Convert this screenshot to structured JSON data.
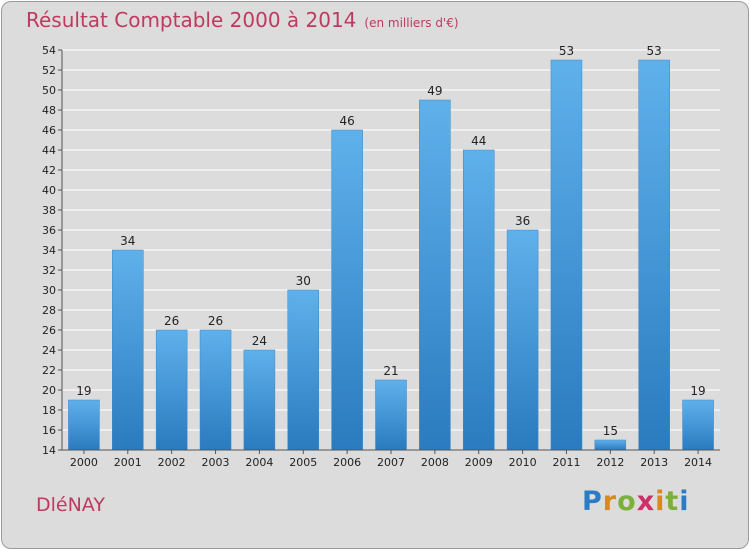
{
  "title": "Résultat Comptable 2000 à 2014",
  "unit": "(en milliers d'€)",
  "commune": "DléNAY",
  "logo": {
    "text": "Proxiti",
    "letter_colors": [
      "#2a7cc4",
      "#d98a1a",
      "#7bb13a",
      "#cc2f6b",
      "#d98a1a",
      "#7bb13a",
      "#2a7cc4"
    ]
  },
  "colors": {
    "title": "#c0395f",
    "bar_top": "#5fb1eb",
    "bar_bottom": "#2a7bbf",
    "grid": "#ffffff"
  },
  "chart_data": {
    "type": "bar",
    "title": "Résultat Comptable 2000 à 2014",
    "ylabel": "(en milliers d'€)",
    "categories": [
      "2000",
      "2001",
      "2002",
      "2003",
      "2004",
      "2005",
      "2006",
      "2007",
      "2008",
      "2009",
      "2010",
      "2011",
      "2012",
      "2013",
      "2014"
    ],
    "values": [
      19,
      34,
      26,
      26,
      24,
      30,
      46,
      21,
      49,
      44,
      36,
      53,
      15,
      53,
      19
    ],
    "ylim": [
      14,
      54
    ],
    "yticks": [
      14,
      16,
      18,
      20,
      22,
      24,
      26,
      28,
      30,
      32,
      34,
      36,
      38,
      40,
      42,
      44,
      46,
      48,
      50,
      52,
      54
    ],
    "grid": true
  }
}
